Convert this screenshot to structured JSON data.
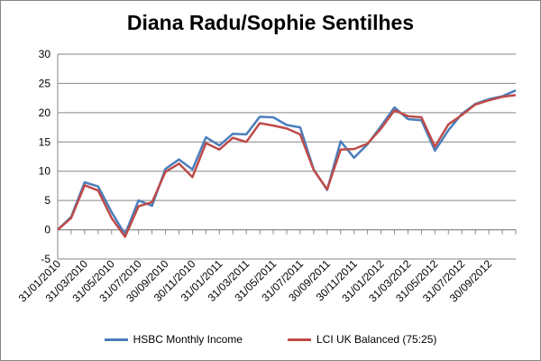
{
  "chart_data": {
    "type": "line",
    "title": "Diana Radu/Sophie Sentilhes",
    "xlabel": "",
    "ylabel": "",
    "ylim": [
      -5,
      30
    ],
    "yticks": [
      "-5",
      "0",
      "5",
      "10",
      "15",
      "20",
      "25",
      "30"
    ],
    "grid": "horizontal",
    "legend_position": "bottom",
    "x": [
      "31/01/2010",
      "28/02/2010",
      "31/03/2010",
      "30/04/2010",
      "31/05/2010",
      "30/06/2010",
      "31/07/2010",
      "31/08/2010",
      "30/09/2010",
      "31/10/2010",
      "30/11/2010",
      "31/12/2010",
      "31/01/2011",
      "28/02/2011",
      "31/03/2011",
      "30/04/2011",
      "31/05/2011",
      "30/06/2011",
      "31/07/2011",
      "31/08/2011",
      "30/09/2011",
      "31/10/2011",
      "30/11/2011",
      "31/12/2011",
      "31/01/2012",
      "29/02/2012",
      "31/03/2012",
      "30/04/2012",
      "31/05/2012",
      "30/06/2012",
      "31/07/2012",
      "31/08/2012",
      "30/09/2012",
      "31/10/2012",
      "30/11/2012"
    ],
    "xtick_labels": [
      "31/01/2010",
      "31/03/2010",
      "31/05/2010",
      "31/07/2010",
      "30/09/2010",
      "30/11/2010",
      "31/01/2011",
      "31/03/2011",
      "31/05/2011",
      "31/07/2011",
      "30/09/2011",
      "30/11/2011",
      "31/01/2012",
      "31/03/2012",
      "31/05/2012",
      "31/07/2012",
      "30/09/2012"
    ],
    "series": [
      {
        "name": "HSBC Monthly Income",
        "color": "#4a7ebb",
        "values": [
          0,
          2.2,
          8.1,
          7.4,
          3.0,
          -0.8,
          5.0,
          4.1,
          10.4,
          12.0,
          10.3,
          15.8,
          14.4,
          16.4,
          16.3,
          19.3,
          19.2,
          17.9,
          17.5,
          10.3,
          6.8,
          15.1,
          12.3,
          14.6,
          17.7,
          20.9,
          18.9,
          18.7,
          13.5,
          17.0,
          19.8,
          21.5,
          22.3,
          22.8,
          23.8
        ]
      },
      {
        "name": "LCI UK Balanced (75:25)",
        "color": "#be4b48",
        "values": [
          0,
          2.0,
          7.6,
          6.7,
          2.0,
          -1.2,
          4.0,
          4.7,
          9.9,
          11.3,
          9.0,
          14.8,
          13.7,
          15.7,
          15.0,
          18.2,
          17.8,
          17.3,
          16.3,
          10.2,
          6.9,
          13.7,
          13.8,
          14.7,
          17.3,
          20.4,
          19.4,
          19.2,
          14.2,
          18.0,
          19.6,
          21.4,
          22.1,
          22.7,
          23.0
        ]
      }
    ]
  }
}
